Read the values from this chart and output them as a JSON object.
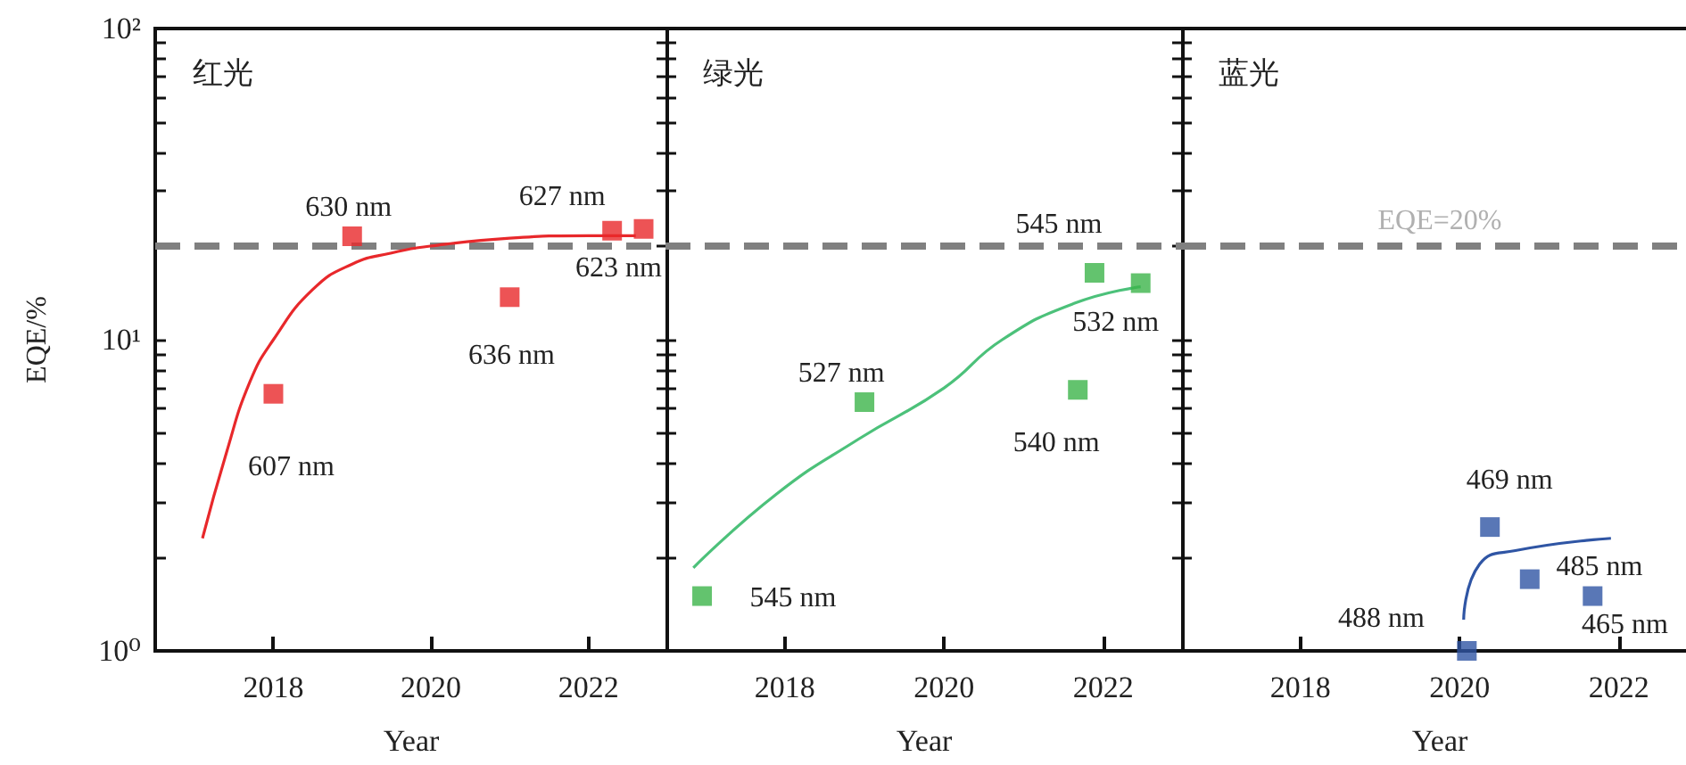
{
  "chart_data": [
    {
      "type": "scatter",
      "title": "红光",
      "xlabel": "Year",
      "ylabel": "EQE/%",
      "log": "y",
      "marker": "square",
      "xlim": [
        2016.5,
        2023
      ],
      "xticks": [
        2018,
        2020,
        2022
      ],
      "ylim": [
        1,
        100
      ],
      "yticks": [
        {
          "value": 1,
          "label": "10⁰"
        },
        {
          "value": 2,
          "label": null
        },
        {
          "value": 3,
          "label": null
        },
        {
          "value": 4,
          "label": null
        },
        {
          "value": 5,
          "label": null
        },
        {
          "value": 6,
          "label": null
        },
        {
          "value": 7,
          "label": null
        },
        {
          "value": 8,
          "label": null
        },
        {
          "value": 9,
          "label": null
        },
        {
          "value": 10,
          "label": "10¹"
        },
        {
          "value": 20,
          "label": null
        },
        {
          "value": 30,
          "label": null
        },
        {
          "value": 40,
          "label": null
        },
        {
          "value": 50,
          "label": null
        },
        {
          "value": 60,
          "label": null
        },
        {
          "value": 70,
          "label": null
        },
        {
          "value": 80,
          "label": null
        },
        {
          "value": 90,
          "label": null
        },
        {
          "value": 100,
          "label": "10²"
        }
      ],
      "series": [
        {
          "type": "scatter",
          "color": "#e8282b",
          "x": [
            2018,
            2019,
            2021,
            2022.3,
            2022.7
          ],
          "values": [
            6.7,
            21.5,
            13.7,
            22.4,
            22.7
          ]
        },
        {
          "type": "line",
          "marker": "none",
          "color": "#e8282b",
          "x": [
            2017.1,
            2017.4,
            2017.7,
            2018,
            2018.5,
            2019,
            2019.5,
            2020,
            2021,
            2022,
            2022.6
          ],
          "values": [
            2.3,
            4.3,
            7.3,
            10,
            14.5,
            17.5,
            19,
            20,
            21.2,
            21.6,
            21.6
          ]
        }
      ],
      "ref_lines": [
        {
          "axis": "y",
          "value": 20,
          "color": "#808080",
          "line_style": "dashed"
        }
      ],
      "annotations": [
        {
          "text": "607 nm",
          "x": 2018,
          "y": 6.7
        },
        {
          "text": "630 nm",
          "x": 2019,
          "y": 21.5
        },
        {
          "text": "636 nm",
          "x": 2021,
          "y": 13.7
        },
        {
          "text": "627 nm",
          "x": 2022.3,
          "y": 22.4
        },
        {
          "text": "623 nm",
          "x": 2022.7,
          "y": 22.7
        }
      ]
    },
    {
      "type": "scatter",
      "title": "绿光",
      "xlabel": "Year",
      "log": "y",
      "marker": "square",
      "tick_labels": "x",
      "xlim": [
        2016.5,
        2023
      ],
      "xticks": [
        2018,
        2020,
        2022
      ],
      "ylim": [
        1,
        100
      ],
      "yticks": [
        {
          "value": 1,
          "label": null
        },
        {
          "value": 2,
          "label": null
        },
        {
          "value": 3,
          "label": null
        },
        {
          "value": 4,
          "label": null
        },
        {
          "value": 5,
          "label": null
        },
        {
          "value": 6,
          "label": null
        },
        {
          "value": 7,
          "label": null
        },
        {
          "value": 8,
          "label": null
        },
        {
          "value": 9,
          "label": null
        },
        {
          "value": 10,
          "label": null
        },
        {
          "value": 20,
          "label": null
        },
        {
          "value": 30,
          "label": null
        },
        {
          "value": 40,
          "label": null
        },
        {
          "value": 50,
          "label": null
        },
        {
          "value": 60,
          "label": null
        },
        {
          "value": 70,
          "label": null
        },
        {
          "value": 80,
          "label": null
        },
        {
          "value": 90,
          "label": null
        },
        {
          "value": 100,
          "label": null
        }
      ],
      "series": [
        {
          "type": "scatter",
          "color": "#3cb44a",
          "x": [
            2016.96,
            2019,
            2021.68,
            2021.89,
            2022.47
          ],
          "values": [
            1.5,
            6.3,
            6.9,
            16.4,
            15.2
          ]
        },
        {
          "type": "line",
          "marker": "none",
          "color": "#4cc17a",
          "x": [
            2016.85,
            2017.9,
            2018.93,
            2020,
            2020.73,
            2021.64,
            2022.47
          ],
          "values": [
            1.85,
            3.2,
            4.8,
            7.0,
            10,
            13.1,
            14.8
          ]
        }
      ],
      "ref_lines": [
        {
          "axis": "y",
          "value": 20,
          "color": "#808080",
          "line_style": "dashed"
        }
      ],
      "annotations": [
        {
          "text": "545 nm",
          "x": 2016.96,
          "y": 1.5
        },
        {
          "text": "527 nm",
          "x": 2019,
          "y": 6.3
        },
        {
          "text": "540 nm",
          "x": 2021.68,
          "y": 6.9
        },
        {
          "text": "545 nm",
          "x": 2021.89,
          "y": 16.4
        },
        {
          "text": "532 nm",
          "x": 2022.47,
          "y": 15.2
        }
      ]
    },
    {
      "type": "scatter",
      "title": "蓝光",
      "xlabel": "Year",
      "log": "y",
      "marker": "square",
      "tick_labels": "x",
      "xlim": [
        2016.5,
        2023
      ],
      "xticks": [
        2018,
        2020,
        2022
      ],
      "ylim": [
        1,
        100
      ],
      "yticks": [
        {
          "value": 1,
          "label": null
        },
        {
          "value": 2,
          "label": null
        },
        {
          "value": 3,
          "label": null
        },
        {
          "value": 4,
          "label": null
        },
        {
          "value": 5,
          "label": null
        },
        {
          "value": 6,
          "label": null
        },
        {
          "value": 7,
          "label": null
        },
        {
          "value": 8,
          "label": null
        },
        {
          "value": 9,
          "label": null
        },
        {
          "value": 10,
          "label": null
        },
        {
          "value": 20,
          "label": null
        },
        {
          "value": 30,
          "label": null
        },
        {
          "value": 40,
          "label": null
        },
        {
          "value": 50,
          "label": null
        },
        {
          "value": 60,
          "label": null
        },
        {
          "value": 70,
          "label": null
        },
        {
          "value": 80,
          "label": null
        },
        {
          "value": 90,
          "label": null
        },
        {
          "value": 100,
          "label": null
        }
      ],
      "series": [
        {
          "type": "scatter",
          "color": "#2f55a4",
          "x": [
            2020.09,
            2020.38,
            2020.88,
            2021.67
          ],
          "values": [
            1.0,
            2.5,
            1.7,
            1.5
          ]
        },
        {
          "type": "line",
          "marker": "none",
          "color": "#2f55a4",
          "x": [
            2020.05,
            2020.25,
            2020.7,
            2021.9
          ],
          "values": [
            1.26,
            1.9,
            2.1,
            2.3
          ]
        }
      ],
      "ref_lines": [
        {
          "axis": "y",
          "value": 20,
          "label": "EQE=20%",
          "color": "#808080",
          "line_style": "dashed"
        }
      ],
      "annotations": [
        {
          "text": "488 nm",
          "x": 2020.09,
          "y": 1.0
        },
        {
          "text": "469 nm",
          "x": 2020.38,
          "y": 2.5
        },
        {
          "text": "485 nm",
          "x": 2020.88,
          "y": 1.7
        },
        {
          "text": "465 nm",
          "x": 2021.67,
          "y": 1.5
        }
      ]
    }
  ]
}
